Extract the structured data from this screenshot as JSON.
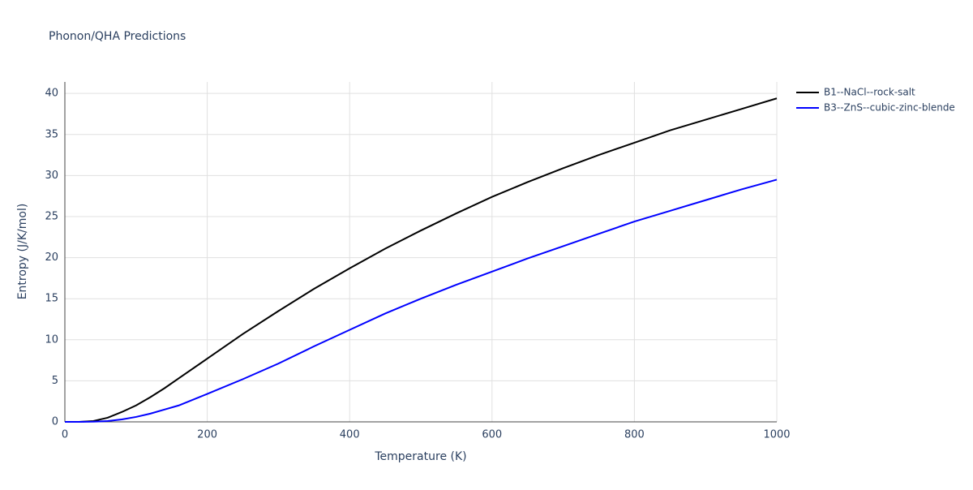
{
  "chart_data": {
    "type": "line",
    "title": "Phonon/QHA Predictions",
    "x_label": "Temperature (K)",
    "y_label": "Entropy (J/K/mol)",
    "x": [
      0,
      20,
      40,
      60,
      80,
      100,
      120,
      140,
      160,
      200,
      250,
      300,
      350,
      400,
      450,
      500,
      550,
      600,
      650,
      700,
      750,
      800,
      850,
      900,
      950,
      1000
    ],
    "series": [
      {
        "name": "B1--NaCl--rock-salt",
        "color": "#000000",
        "values": [
          0,
          0,
          0.1,
          0.5,
          1.2,
          2.0,
          3.0,
          4.1,
          5.3,
          7.7,
          10.7,
          13.5,
          16.2,
          18.7,
          21.1,
          23.3,
          25.4,
          27.4,
          29.2,
          30.9,
          32.5,
          34.0,
          35.5,
          36.8,
          38.1,
          39.4
        ]
      },
      {
        "name": "B3--ZnS--cubic-zinc-blende",
        "color": "#0000ff",
        "values": [
          0,
          0,
          0.02,
          0.1,
          0.3,
          0.6,
          1.0,
          1.5,
          2.0,
          3.4,
          5.2,
          7.1,
          9.2,
          11.2,
          13.2,
          15.0,
          16.7,
          18.3,
          19.9,
          21.4,
          22.9,
          24.4,
          25.7,
          27.0,
          28.3,
          29.5
        ]
      }
    ],
    "xlim": [
      0,
      1000
    ],
    "xticks": [
      0,
      200,
      400,
      600,
      800,
      1000
    ],
    "ylim": [
      0,
      41.4
    ],
    "yticks": [
      0,
      5,
      10,
      15,
      20,
      25,
      30,
      35,
      40
    ],
    "grid": true,
    "legend": "outside-right"
  }
}
